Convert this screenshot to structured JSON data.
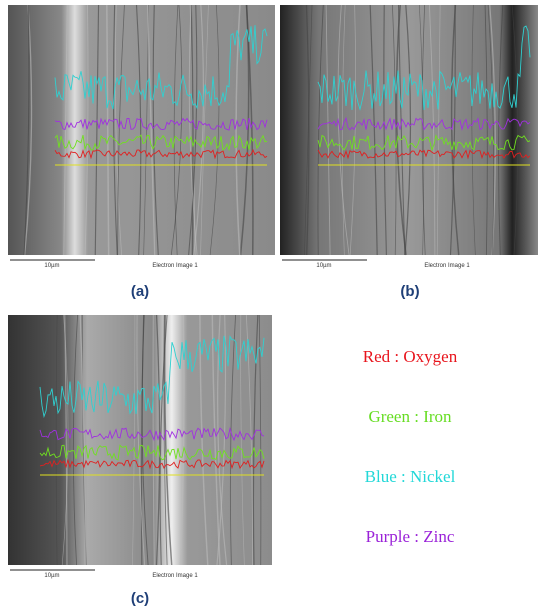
{
  "panels": [
    {
      "label": "(a)",
      "scale_bar": "10µm",
      "image_caption": "Electron Image 1"
    },
    {
      "label": "(b)",
      "scale_bar": "10µm",
      "image_caption": "Electron Image 1"
    },
    {
      "label": "(c)",
      "scale_bar": "10µm",
      "image_caption": "Electron Image 1"
    }
  ],
  "legend": [
    "Red : Oxygen",
    "Green : Iron",
    "Blue : Nickel",
    "Purple : Zinc"
  ]
}
